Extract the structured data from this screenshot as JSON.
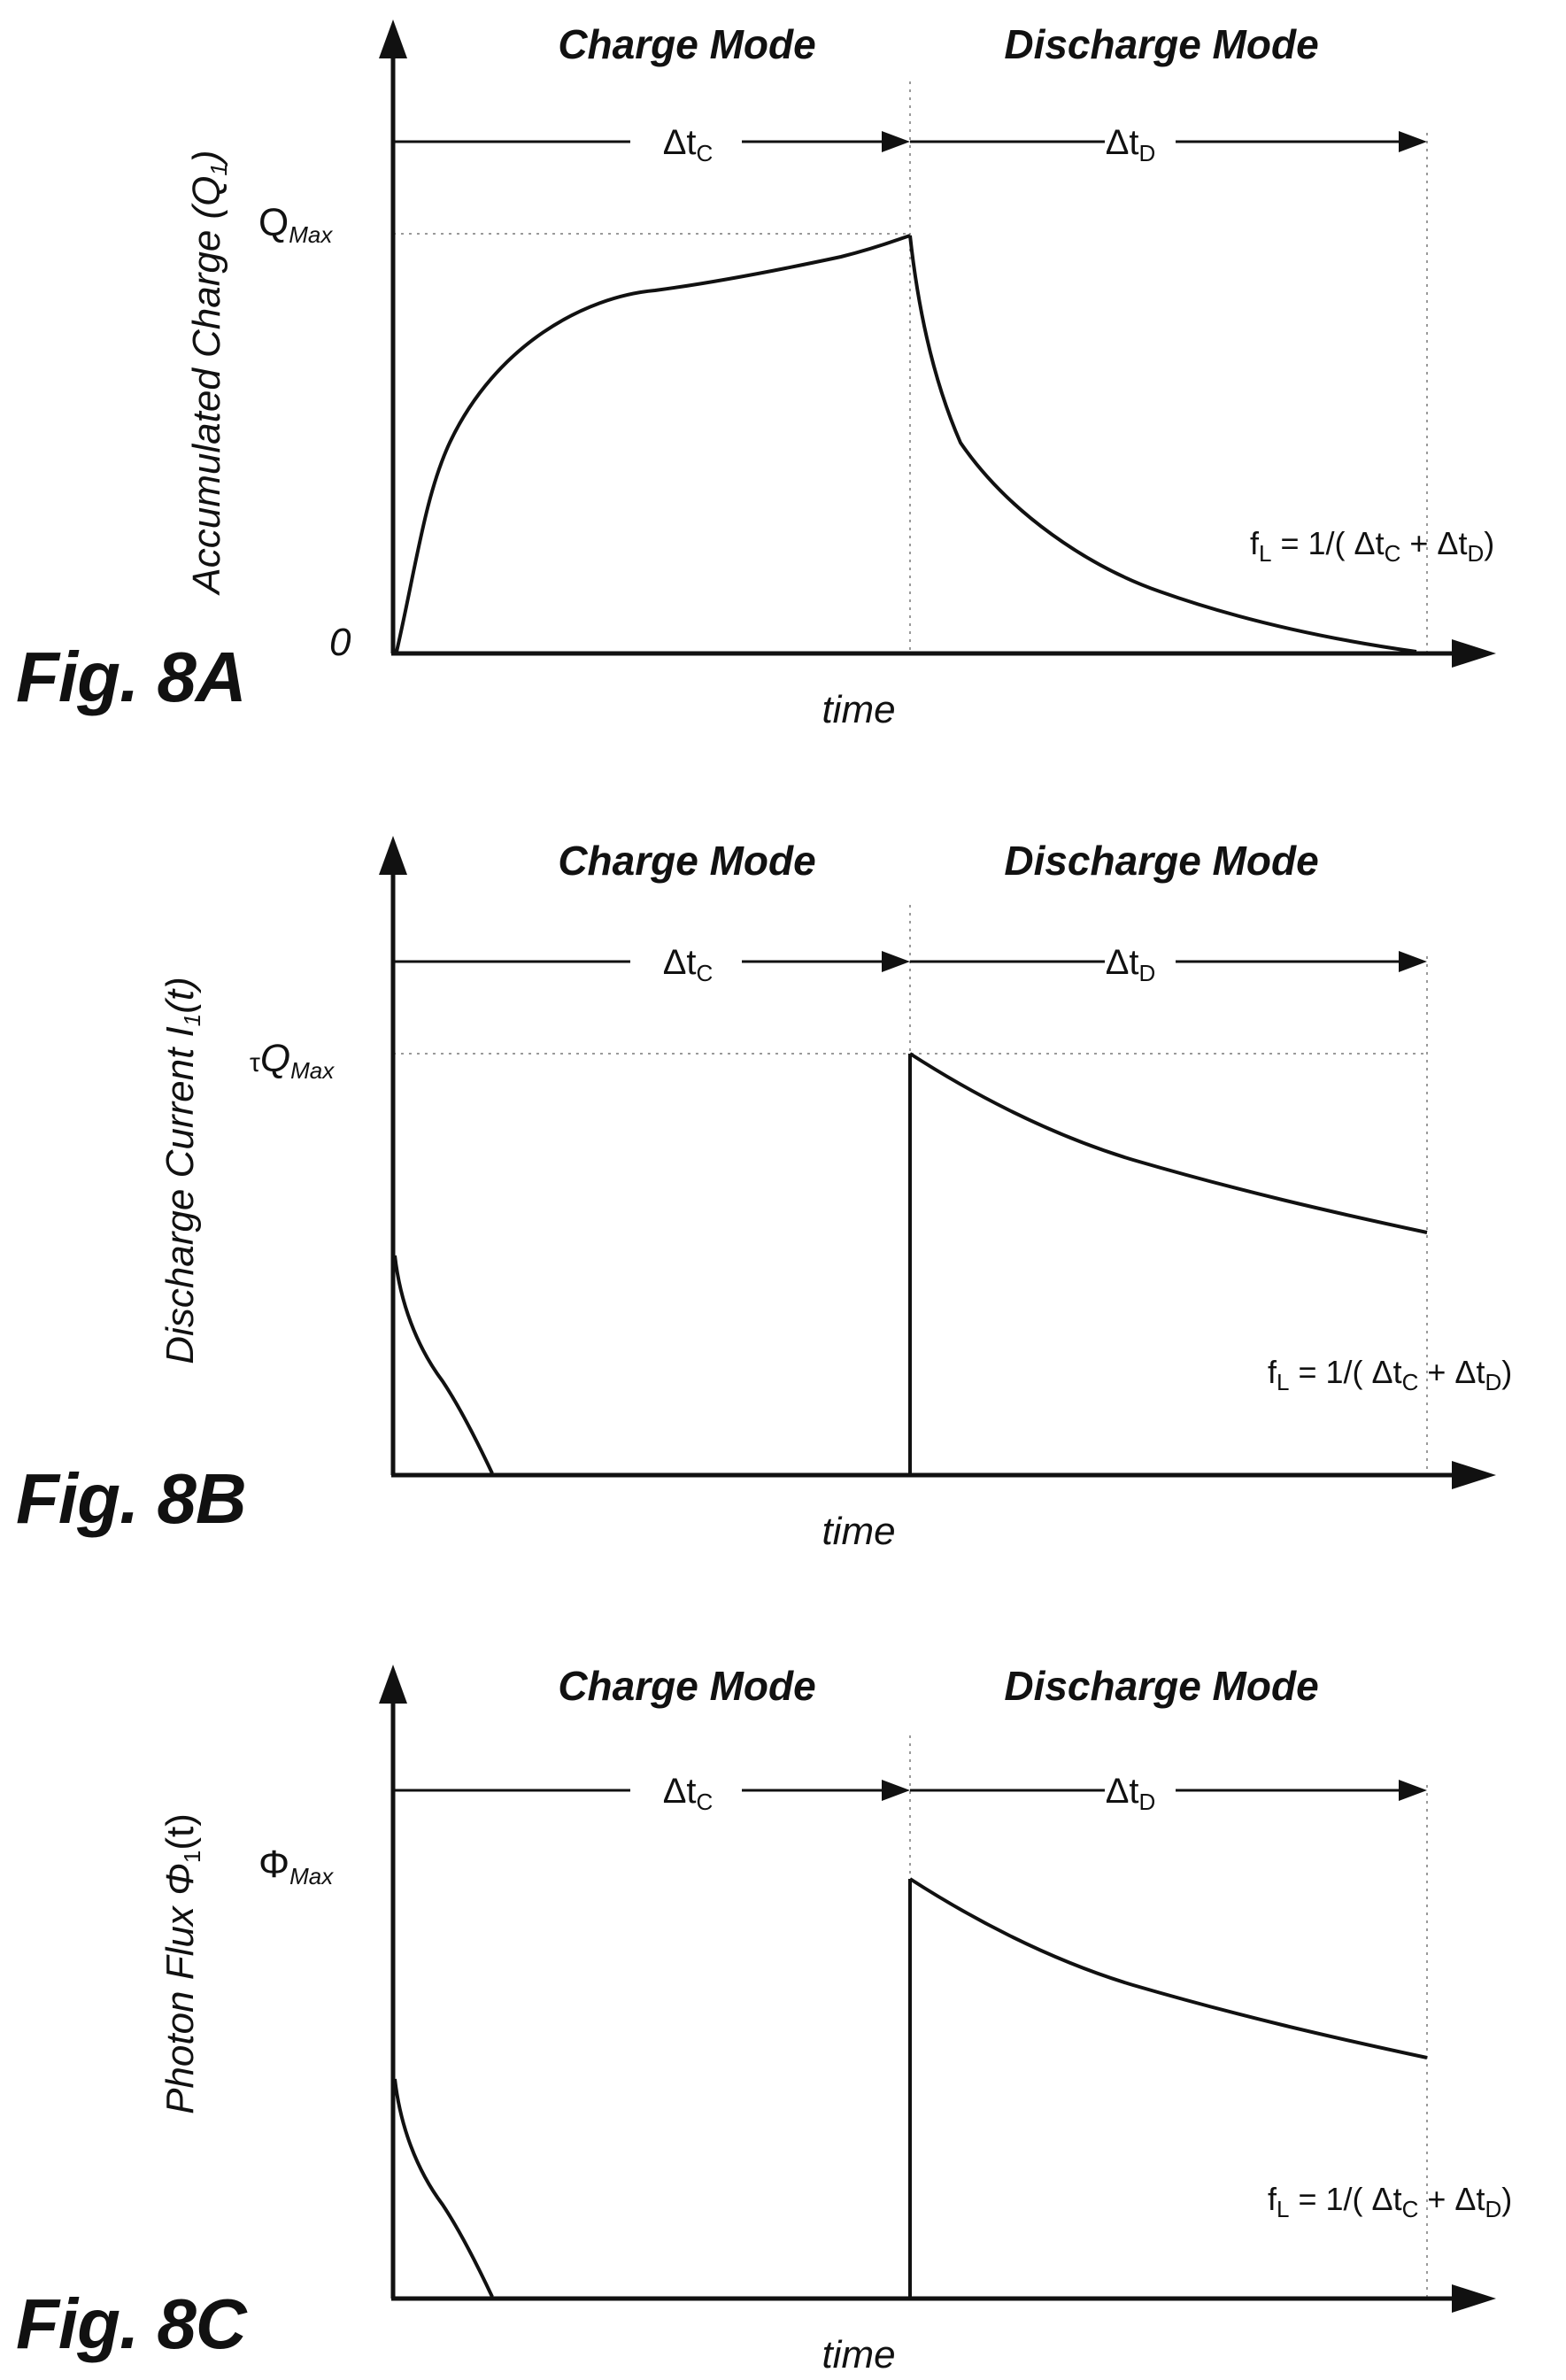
{
  "panels": [
    {
      "id": "8A",
      "fig_label": "Fig. 8A",
      "charge_mode_label": "Charge Mode",
      "discharge_mode_label": "Discharge Mode",
      "delta_c": {
        "base": "Δt",
        "sub": "C"
      },
      "delta_d": {
        "base": "Δt",
        "sub": "D"
      },
      "ylabel": {
        "main": "Accumulated Charge (Q",
        "sub": "1",
        "tail": ")"
      },
      "ymax_label": {
        "prefix": "",
        "main": "Q",
        "sub": "Max"
      },
      "zero_label": "0",
      "xlabel": "time",
      "formula": {
        "f": "f",
        "fsub": "L",
        "eq": " = 1/( ",
        "a": "Δt",
        "asub": "C",
        "plus": " + ",
        "b": "Δt",
        "bsub": "D",
        "close": ")"
      }
    },
    {
      "id": "8B",
      "fig_label": "Fig. 8B",
      "charge_mode_label": "Charge Mode",
      "discharge_mode_label": "Discharge Mode",
      "delta_c": {
        "base": "Δt",
        "sub": "C"
      },
      "delta_d": {
        "base": "Δt",
        "sub": "D"
      },
      "ylabel": {
        "main": "Discharge Current I",
        "sub": "1",
        "tail": "(t)"
      },
      "ymax_label": {
        "prefix": "τ",
        "main": "Q",
        "sub": "Max"
      },
      "zero_label": "",
      "xlabel": "time",
      "formula": {
        "f": "f",
        "fsub": "L",
        "eq": " = 1/( ",
        "a": "Δt",
        "asub": "C",
        "plus": " + ",
        "b": "Δt",
        "bsub": "D",
        "close": ")"
      }
    },
    {
      "id": "8C",
      "fig_label": "Fig. 8C",
      "charge_mode_label": "Charge Mode",
      "discharge_mode_label": "Discharge Mode",
      "delta_c": {
        "base": "Δt",
        "sub": "C"
      },
      "delta_d": {
        "base": "Δt",
        "sub": "D"
      },
      "ylabel": {
        "main": "Photon Flux Φ",
        "sub": "1",
        "tail": "(t)"
      },
      "ymax_label": {
        "prefix": "",
        "main": "Φ",
        "sub": "Max"
      },
      "zero_label": "",
      "xlabel": "time",
      "formula": {
        "f": "f",
        "fsub": "L",
        "eq": " = 1/( ",
        "a": "Δt",
        "asub": "C",
        "plus": " + ",
        "b": "Δt",
        "bsub": "D",
        "close": ")"
      }
    }
  ],
  "colors": {
    "line": "#111111",
    "guide": "#9a9a9a",
    "background": "#ffffff"
  }
}
